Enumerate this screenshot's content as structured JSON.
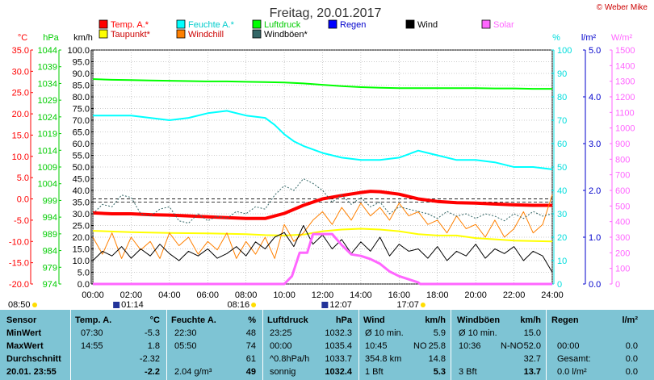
{
  "credit": "© Weber Mike",
  "chart_data": {
    "type": "line",
    "title": "Freitag, 20.01.2017",
    "x_ticks": [
      "00:00",
      "02:00",
      "04:00",
      "06:00",
      "08:00",
      "10:00",
      "12:00",
      "14:00",
      "16:00",
      "18:00",
      "20:00",
      "22:00",
      "24:00"
    ],
    "xlim": [
      0,
      24
    ],
    "axes": {
      "celsius": {
        "label": "°C",
        "color": "#ff0000",
        "range": [
          -20,
          35
        ],
        "ticks": [
          "35.0",
          "30.0",
          "25.0",
          "20.0",
          "15.0",
          "10.0",
          "5.0",
          "0.0",
          "-5.0",
          "-10.0",
          "-15.0",
          "-20.0"
        ]
      },
      "hpa": {
        "label": "hPa",
        "color": "#00cc00",
        "range": [
          974,
          1044
        ],
        "ticks": [
          "1044",
          "1039",
          "1034",
          "1029",
          "1024",
          "1019",
          "1014",
          "1009",
          "1004",
          "999",
          "994",
          "989",
          "984",
          "979",
          "974"
        ]
      },
      "kmh": {
        "label": "km/h",
        "color": "#000000",
        "range": [
          0,
          100
        ],
        "ticks": [
          "100.0",
          "95.0",
          "90.0",
          "85.0",
          "80.0",
          "75.0",
          "70.0",
          "65.0",
          "60.0",
          "55.0",
          "50.0",
          "45.0",
          "40.0",
          "35.0",
          "30.0",
          "25.0",
          "20.0",
          "15.0",
          "10.0",
          "5.0",
          "0.0"
        ]
      },
      "percent": {
        "label": "%",
        "color": "#00dddd",
        "range": [
          0,
          100
        ],
        "ticks": [
          "100",
          "90",
          "80",
          "70",
          "60",
          "50",
          "40",
          "30",
          "20",
          "10",
          "0"
        ]
      },
      "lm2": {
        "label": "l/m²",
        "color": "#0000cc",
        "range": [
          0,
          5
        ],
        "ticks": [
          "5.0",
          "4.0",
          "3.0",
          "2.0",
          "1.0",
          "0.0"
        ]
      },
      "wm2": {
        "label": "W/m²",
        "color": "#ff66ff",
        "range": [
          0,
          1500
        ],
        "ticks": [
          "1500",
          "1400",
          "1300",
          "1200",
          "1100",
          "1000",
          "900",
          "800",
          "700",
          "600",
          "500",
          "400",
          "300",
          "200",
          "100",
          "0"
        ]
      }
    },
    "legend": [
      {
        "name": "Temp. A.*",
        "color": "#ff0000",
        "text_color": "#ff0000"
      },
      {
        "name": "Feuchte A.*",
        "color": "#00ffff",
        "text_color": "#00cccc"
      },
      {
        "name": "Luftdruck",
        "color": "#00ff00",
        "text_color": "#00cc00"
      },
      {
        "name": "Regen",
        "color": "#0000ff",
        "text_color": "#0000cc"
      },
      {
        "name": "Wind",
        "color": "#000000",
        "text_color": "#000000"
      },
      {
        "name": "Solar",
        "color": "#ff66ff",
        "text_color": "#ff66ff"
      },
      {
        "name": "Taupunkt*",
        "color": "#ffff00",
        "text_color": "#cc0000"
      },
      {
        "name": "Windchill",
        "color": "#ff8000",
        "text_color": "#cc0000"
      },
      {
        "name": "Windböen*",
        "color": "#336666",
        "text_color": "#000000"
      }
    ],
    "series": [
      {
        "name": "Luftdruck",
        "axis": "hpa",
        "color": "#00ff00",
        "width": 2,
        "x": [
          0,
          1,
          2,
          3,
          4,
          5,
          6,
          7,
          8,
          9,
          10,
          11,
          12,
          13,
          14,
          15,
          16,
          17,
          18,
          19,
          20,
          21,
          22,
          23,
          24
        ],
        "values": [
          1035.3,
          1035.1,
          1035.0,
          1034.9,
          1034.8,
          1034.7,
          1034.6,
          1034.6,
          1034.5,
          1034.4,
          1034.3,
          1034.0,
          1033.6,
          1033.2,
          1032.9,
          1032.7,
          1032.6,
          1032.6,
          1032.6,
          1032.6,
          1032.6,
          1032.5,
          1032.5,
          1032.4,
          1032.4
        ]
      },
      {
        "name": "Feuchte A.*",
        "axis": "percent",
        "color": "#00ffff",
        "width": 2,
        "x": [
          0,
          1,
          2,
          3,
          4,
          5,
          6,
          7,
          8,
          9,
          9.5,
          10,
          10.5,
          11,
          12,
          13,
          14,
          15,
          16,
          17,
          17.5,
          18,
          19,
          20,
          21,
          22,
          23,
          24
        ],
        "values": [
          72,
          72,
          72,
          71,
          70,
          71,
          73,
          74,
          72,
          71,
          68,
          64,
          61,
          59,
          56,
          54,
          53,
          53,
          54,
          57,
          56,
          55,
          53,
          53,
          52,
          50,
          50,
          49
        ]
      },
      {
        "name": "Temp. A.*",
        "axis": "celsius",
        "color": "#ff0000",
        "width": 4,
        "x": [
          0,
          1,
          2,
          3,
          4,
          5,
          6,
          7,
          8,
          9,
          10,
          11,
          12,
          13,
          14,
          14.5,
          15,
          16,
          17,
          18,
          19,
          20,
          21,
          22,
          23,
          24
        ],
        "values": [
          -3.3,
          -3.5,
          -3.5,
          -3.7,
          -3.8,
          -4.0,
          -4.2,
          -4.4,
          -4.6,
          -4.6,
          -3.4,
          -1.5,
          0.0,
          0.8,
          1.5,
          1.8,
          1.7,
          1.1,
          0.0,
          -0.6,
          -0.9,
          -1.0,
          -1.2,
          -1.4,
          -1.5,
          -1.5
        ]
      },
      {
        "name": "Taupunkt*",
        "axis": "celsius",
        "color": "#ffff00",
        "width": 2,
        "x": [
          0,
          2,
          4,
          6,
          8,
          9,
          10,
          11,
          12,
          13,
          14,
          15,
          16,
          17,
          18,
          19,
          20,
          21,
          22,
          23,
          24
        ],
        "values": [
          -7.5,
          -7.8,
          -8.0,
          -8.1,
          -8.3,
          -8.5,
          -8.6,
          -8.4,
          -7.6,
          -7.2,
          -7.0,
          -7.2,
          -7.6,
          -8.3,
          -8.6,
          -8.6,
          -9.2,
          -9.5,
          -9.8,
          -9.9,
          -10.0
        ]
      },
      {
        "name": "Windchill",
        "axis": "celsius",
        "color": "#ff8000",
        "width": 1,
        "x": [
          0,
          0.5,
          1,
          1.5,
          2,
          2.5,
          3,
          3.5,
          4,
          4.5,
          5,
          5.5,
          6,
          6.5,
          7,
          7.5,
          8,
          8.5,
          9,
          9.5,
          10,
          10.5,
          11,
          11.5,
          12,
          12.5,
          13,
          13.5,
          14,
          14.5,
          15,
          15.5,
          16,
          16.5,
          17,
          17.5,
          18,
          18.5,
          19,
          19.5,
          20,
          20.5,
          21,
          21.5,
          22,
          22.5,
          23,
          23.5,
          24
        ],
        "values": [
          -9,
          -13,
          -8,
          -14,
          -9,
          -12,
          -10,
          -14,
          -8,
          -11,
          -9,
          -13,
          -10,
          -12,
          -8,
          -14,
          -10,
          -13,
          -9,
          -14,
          -6,
          -10,
          -8,
          -5,
          -3,
          -6,
          -2,
          -5,
          -1,
          -4,
          -2,
          -5,
          -1,
          -4,
          -3,
          -6,
          -5,
          -8,
          -4,
          -7,
          -6,
          -9,
          -5,
          -9,
          -7,
          -3,
          -8,
          -6,
          1
        ]
      },
      {
        "name": "Windböen*",
        "axis": "kmh",
        "color": "#336666",
        "width": 1,
        "dashed": true,
        "x": [
          0,
          0.5,
          1,
          1.5,
          2,
          2.5,
          3,
          3.5,
          4,
          4.5,
          5,
          5.5,
          6,
          6.5,
          7,
          7.5,
          8,
          8.5,
          9,
          9.5,
          10,
          10.5,
          11,
          11.5,
          12,
          12.5,
          13,
          13.5,
          14,
          14.5,
          15,
          15.5,
          16,
          16.5,
          17,
          17.5,
          18,
          18.5,
          19,
          19.5,
          20,
          20.5,
          21,
          21.5,
          22,
          22.5,
          23,
          23.5,
          24
        ],
        "values": [
          30,
          34,
          33,
          38,
          37,
          30,
          29,
          32,
          33,
          27,
          26,
          30,
          27,
          29,
          28,
          31,
          30,
          33,
          32,
          38,
          42,
          40,
          45,
          43,
          40,
          35,
          38,
          34,
          37,
          33,
          35,
          30,
          33,
          32,
          31,
          30,
          28,
          31,
          29,
          30,
          28,
          30,
          29,
          27,
          30,
          28,
          31,
          29,
          30
        ]
      },
      {
        "name": "Wind",
        "axis": "kmh",
        "color": "#000000",
        "width": 1,
        "x": [
          0,
          0.5,
          1,
          1.5,
          2,
          2.5,
          3,
          3.5,
          4,
          4.5,
          5,
          5.5,
          6,
          6.5,
          7,
          7.5,
          8,
          8.5,
          9,
          9.5,
          10,
          10.5,
          11,
          11.5,
          12,
          12.5,
          13,
          13.5,
          14,
          14.5,
          15,
          15.5,
          16,
          16.5,
          17,
          17.5,
          18,
          18.5,
          19,
          19.5,
          20,
          20.5,
          21,
          21.5,
          22,
          22.5,
          23,
          23.5,
          24
        ],
        "values": [
          10,
          14,
          12,
          16,
          11,
          15,
          12,
          17,
          13,
          10,
          14,
          12,
          15,
          11,
          13,
          16,
          12,
          18,
          15,
          20,
          22,
          16,
          25,
          17,
          21,
          15,
          19,
          13,
          18,
          14,
          20,
          12,
          17,
          14,
          15,
          11,
          16,
          10,
          14,
          12,
          17,
          11,
          15,
          13,
          16,
          10,
          14,
          12,
          5
        ]
      },
      {
        "name": "Solar",
        "axis": "wm2",
        "color": "#ff66ff",
        "width": 3,
        "x": [
          0,
          8.2,
          9,
          10,
          10.4,
          10.8,
          11.2,
          11.5,
          12,
          12.5,
          13,
          13.5,
          14,
          14.5,
          15,
          15.5,
          16,
          16.5,
          17,
          17.1,
          24
        ],
        "values": [
          0,
          0,
          0,
          0,
          50,
          200,
          200,
          320,
          320,
          320,
          250,
          190,
          180,
          160,
          130,
          80,
          50,
          30,
          10,
          0,
          0
        ]
      }
    ],
    "dashed_reference_lines": [
      {
        "axis": "celsius",
        "value": 0
      },
      {
        "axis": "kmh",
        "value": 35
      }
    ],
    "events": [
      {
        "label": "08:50",
        "x": 0.5
      },
      {
        "label": "01:14",
        "x": 1.23,
        "moon": true
      },
      {
        "label": "08:16",
        "x": 8.27
      },
      {
        "label": "12:07",
        "x": 12.12,
        "moon": true
      },
      {
        "label": "17:07",
        "x": 17.12
      }
    ]
  },
  "table": {
    "columns": [
      {
        "header": "Sensor",
        "unit": ""
      },
      {
        "header": "Temp. A.",
        "unit": "°C"
      },
      {
        "header": "Feuchte A.",
        "unit": "%"
      },
      {
        "header": "Luftdruck",
        "unit": "hPa"
      },
      {
        "header": "Wind",
        "unit": "km/h"
      },
      {
        "header": "Windböen",
        "unit": "km/h"
      },
      {
        "header": "Regen",
        "unit": "l/m²"
      }
    ],
    "rows": [
      {
        "label": "MinWert",
        "temp_time": "07:30",
        "temp_val": "-5.3",
        "hum_time": "22:30",
        "hum_val": "48",
        "press_time": "23:25",
        "press_val": "1032.3",
        "wind_desc": "Ø 10 min.",
        "wind_val": "5.9",
        "gust_desc": "Ø 10 min.",
        "gust_val": "15.0",
        "rain_desc": "",
        "rain_val": ""
      },
      {
        "label": "MaxWert",
        "temp_time": "14:55",
        "temp_val": "1.8",
        "hum_time": "05:50",
        "hum_val": "74",
        "press_time": "00:00",
        "press_val": "1035.4",
        "wind_desc": "10:45",
        "wind_dir": "NO",
        "wind_val": "25.8",
        "gust_desc": "10:36",
        "gust_dir": "N-NO",
        "gust_val": "52.0",
        "rain_desc": "00:00",
        "rain_val": "0.0"
      },
      {
        "label": "Durchschnitt",
        "temp_time": "",
        "temp_val": "-2.32",
        "hum_time": "",
        "hum_val": "61",
        "press_time": "^0.8hPa/h",
        "press_val": "1033.7",
        "wind_desc": "354.8 km",
        "wind_val": "14.8",
        "gust_desc": "",
        "gust_val": "32.7",
        "rain_desc": "Gesamt:",
        "rain_val": "0.0"
      },
      {
        "label": "20.01. 23:55",
        "temp_time": "",
        "temp_val": "-2.2",
        "hum_time": "2.04 g/m³",
        "hum_val": "49",
        "press_time": "sonnig",
        "press_val": "1032.4",
        "wind_desc": "1 Bft",
        "wind_val": "5.3",
        "gust_desc": "3 Bft",
        "gust_val": "13.7",
        "rain_desc": "0.0 l/m²",
        "rain_val": "0.0"
      }
    ]
  }
}
